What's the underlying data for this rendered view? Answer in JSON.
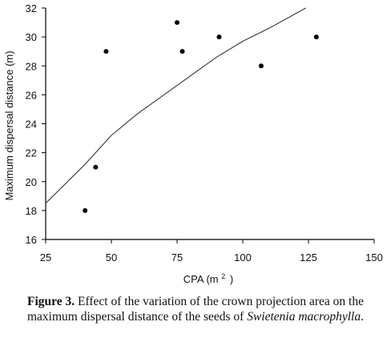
{
  "chart_data": {
    "type": "scatter",
    "title": "",
    "xlabel": "CPA (m",
    "xlabel_sup": "2",
    "xlabel_close": ")",
    "ylabel": "Maximum dispersal distance (m)",
    "xlim": [
      25,
      150
    ],
    "ylim": [
      16,
      32
    ],
    "x_ticks": [
      25,
      50,
      75,
      100,
      125,
      150
    ],
    "y_ticks": [
      16,
      18,
      20,
      22,
      24,
      26,
      28,
      30,
      32
    ],
    "grid": false,
    "series": [
      {
        "points": [
          {
            "x": 40,
            "y": 18
          },
          {
            "x": 44,
            "y": 21
          },
          {
            "x": 48,
            "y": 29
          },
          {
            "x": 75,
            "y": 31
          },
          {
            "x": 77,
            "y": 29
          },
          {
            "x": 91,
            "y": 30
          },
          {
            "x": 107,
            "y": 28
          },
          {
            "x": 128,
            "y": 30
          }
        ]
      }
    ],
    "trend_curve": {
      "x": [
        25,
        30,
        35,
        40,
        45,
        50,
        60,
        70,
        80,
        90,
        100,
        110,
        124
      ],
      "y": [
        18.5,
        19.4,
        20.3,
        21.2,
        22.2,
        23.2,
        24.7,
        26.0,
        27.3,
        28.6,
        29.7,
        30.6,
        32.0
      ]
    },
    "colors": {
      "points": "#000000",
      "curve": "#333333",
      "axes": "#000000"
    }
  },
  "caption": {
    "label": "Figure 3.",
    "text_part1": "Effect of the variation of the crown projection area on the maximum dispersal distance of the seeds of",
    "species": "Swietenia macrophylla",
    "end": "."
  }
}
